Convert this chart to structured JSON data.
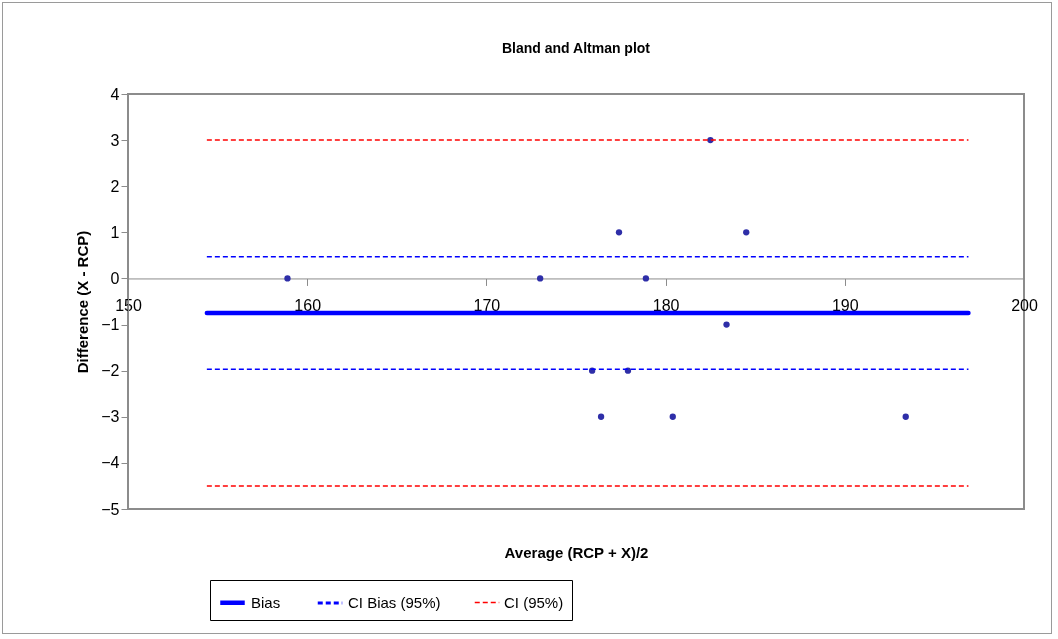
{
  "chart_data": {
    "type": "scatter",
    "title": "Bland and Altman plot",
    "xlabel": "Average (RCP + X)/2",
    "ylabel": "Difference  (X - RCP)",
    "xlim": [
      150,
      200
    ],
    "xticks": [
      150,
      160,
      170,
      180,
      190,
      200
    ],
    "ylim": [
      -5,
      4
    ],
    "yticks": [
      -5,
      -4,
      -3,
      -2,
      -1,
      0,
      1,
      2,
      3,
      4
    ],
    "grid": false,
    "legend": "bottom",
    "series": [
      {
        "color": "#2e2ea8",
        "marker": "circle",
        "x": [
          158.9,
          173,
          177.4,
          182.5,
          184.5,
          178.9,
          183.4,
          175.9,
          177.9,
          176.4,
          180.4,
          193.4
        ],
        "values": [
          0,
          0,
          1,
          3,
          1,
          0,
          -1,
          -2,
          -2,
          -3,
          -3,
          -3
        ]
      },
      {
        "type": "line",
        "name": "Bias",
        "color": "#0000ff",
        "line_style": "solid",
        "marker": "none",
        "x": [
          154.4,
          196.9
        ],
        "values": [
          -0.75,
          -0.75
        ]
      },
      {
        "type": "line",
        "name": "CI Bias (95%)",
        "color": "#0000ff",
        "line_style": "dashed",
        "marker": "none",
        "x": [
          154.4,
          196.9
        ],
        "values": [
          0.47,
          0.47
        ]
      },
      {
        "type": "line",
        "color": "#0000ff",
        "line_style": "dashed",
        "marker": "none",
        "x": [
          154.4,
          196.9
        ],
        "values": [
          -1.97,
          -1.97
        ]
      },
      {
        "type": "line",
        "name": "CI (95%)",
        "color": "#ff0000",
        "line_style": "dashed",
        "marker": "none",
        "x": [
          154.4,
          196.9
        ],
        "values": [
          3,
          3
        ]
      },
      {
        "type": "line",
        "color": "#ff0000",
        "line_style": "dashed",
        "marker": "none",
        "x": [
          154.4,
          196.9
        ],
        "values": [
          -4.5,
          -4.5
        ]
      }
    ]
  }
}
